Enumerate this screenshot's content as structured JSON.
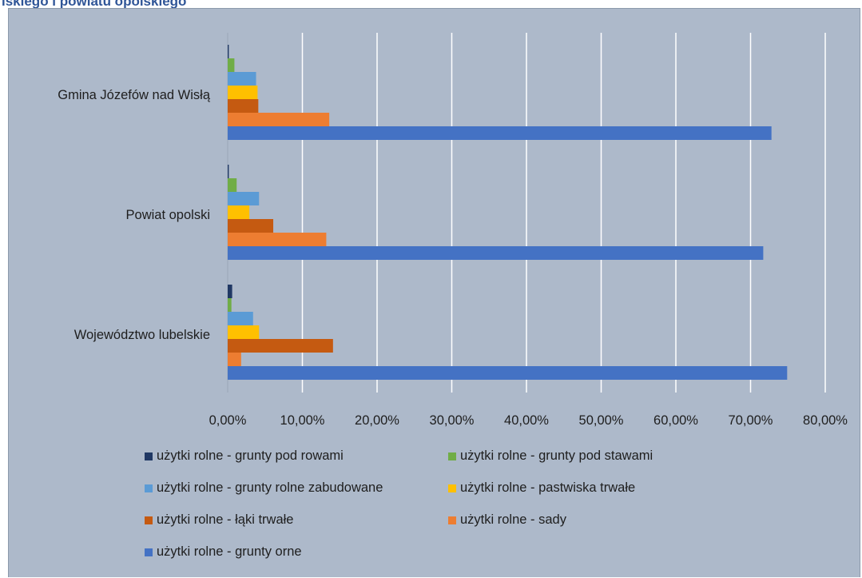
{
  "page": {
    "title_fragment": "lskiego i powiatu opolskiego"
  },
  "chart_data": {
    "type": "bar",
    "orientation": "horizontal",
    "categories": [
      "Gmina Józefów nad Wisłą",
      "Powiat opolski",
      "Województwo lubelskie"
    ],
    "series": [
      {
        "name": "użytki rolne - grunty pod rowami",
        "color": "#203864",
        "values": [
          0.0015,
          0.0015,
          0.006
        ]
      },
      {
        "name": "użytki rolne - grunty pod stawami",
        "color": "#70ad47",
        "values": [
          0.009,
          0.012,
          0.005
        ]
      },
      {
        "name": "użytki rolne - grunty rolne zabudowane",
        "color": "#5b9bd5",
        "values": [
          0.038,
          0.042,
          0.034
        ]
      },
      {
        "name": "użytki rolne - pastwiska trwałe",
        "color": "#ffc000",
        "values": [
          0.04,
          0.029,
          0.042
        ]
      },
      {
        "name": "użytki rolne - łąki trwałe",
        "color": "#c55a11",
        "values": [
          0.041,
          0.061,
          0.141
        ]
      },
      {
        "name": "użytki rolne - sady",
        "color": "#ed7d31",
        "values": [
          0.136,
          0.132,
          0.018
        ]
      },
      {
        "name": "użytki rolne - grunty orne",
        "color": "#4472c4",
        "values": [
          0.728,
          0.717,
          0.749
        ]
      }
    ],
    "xlim": [
      0,
      0.8
    ],
    "xticks": [
      0,
      0.1,
      0.2,
      0.3,
      0.4,
      0.5,
      0.6,
      0.7,
      0.8
    ],
    "xtick_labels": [
      "0,00%",
      "10,00%",
      "20,00%",
      "30,00%",
      "40,00%",
      "50,00%",
      "60,00%",
      "70,00%",
      "80,00%"
    ],
    "xlabel": "",
    "ylabel": "",
    "grid": true,
    "legend_position": "bottom",
    "background_color": "#adb9ca",
    "gridline_color": "#ffffff"
  }
}
